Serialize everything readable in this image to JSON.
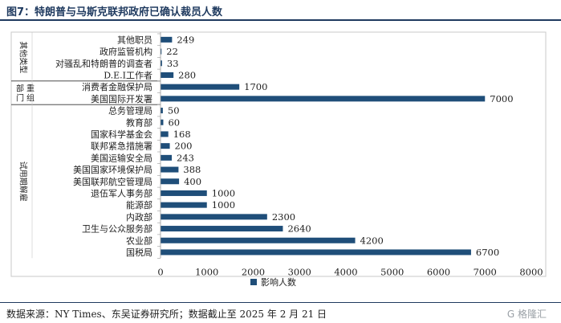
{
  "header": {
    "title": "图7：特朗普与马斯克联邦政府已确认裁员人数"
  },
  "footer": {
    "source": "数据来源：NY Times、东吴证券研究所；数据截止至 2025 年 2 月 21 日",
    "watermark": "G 格隆汇"
  },
  "chart_data": {
    "type": "bar",
    "orientation": "horizontal",
    "categories": [
      "其他职员",
      "政府监管机构",
      "对骚乱和特朗普的调查者",
      "D.E.I工作者",
      "消费者金融保护局",
      "美国国际开发署",
      "总务管理局",
      "教育部",
      "国家科学基金会",
      "联邦紧急措施署",
      "美国运输安全局",
      "美国国家环境保护局",
      "美国联邦航空管理局",
      "退伍军人事务部",
      "能源部",
      "内政部",
      "卫生与公众服务部",
      "农业部",
      "国税局"
    ],
    "values": [
      249,
      22,
      33,
      280,
      1700,
      7000,
      50,
      60,
      168,
      200,
      243,
      388,
      400,
      1000,
      1000,
      2300,
      2640,
      4200,
      6700
    ],
    "groups": [
      {
        "label": "其他类型",
        "start": 0,
        "end": 3
      },
      {
        "label": "部门重组",
        "start": 4,
        "end": 5
      },
      {
        "label": "试用期解雇",
        "start": 6,
        "end": 18
      }
    ],
    "xlim": [
      0,
      8000
    ],
    "xticks": [
      0,
      1000,
      2000,
      3000,
      4000,
      5000,
      6000,
      7000,
      8000
    ],
    "legend": "影响人数",
    "legend_position": "bottom",
    "bar_color": "#1f4e79",
    "grid": false
  }
}
